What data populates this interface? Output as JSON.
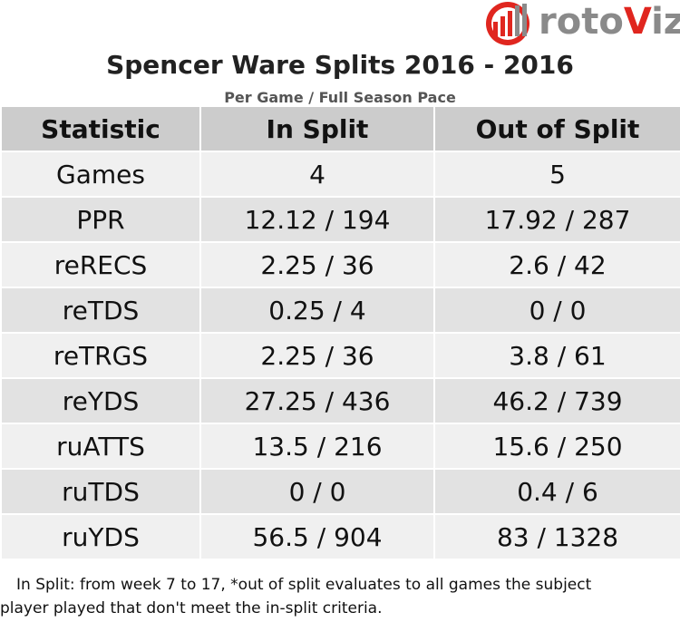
{
  "logo": {
    "text_part1": "roto",
    "text_part2": "V",
    "text_part3": "iz"
  },
  "title": "Spencer Ware Splits 2016 - 2016",
  "subtitle": "Per Game / Full Season Pace",
  "table": {
    "headers": [
      "Statistic",
      "In Split",
      "Out of Split"
    ],
    "rows": [
      [
        "Games",
        "4",
        "5"
      ],
      [
        "PPR",
        "12.12 / 194",
        "17.92 / 287"
      ],
      [
        "reRECS",
        "2.25 / 36",
        "2.6 / 42"
      ],
      [
        "reTDS",
        "0.25 / 4",
        "0 / 0"
      ],
      [
        "reTRGS",
        "2.25 / 36",
        "3.8 / 61"
      ],
      [
        "reYDS",
        "27.25 / 436",
        "46.2 / 739"
      ],
      [
        "ruATTS",
        "13.5 / 216",
        "15.6 / 250"
      ],
      [
        "ruTDS",
        "0 / 0",
        "0.4 / 6"
      ],
      [
        "ruYDS",
        "56.5 / 904",
        "83 / 1328"
      ]
    ]
  },
  "footnote": {
    "line1": "In Split: from week 7 to 17,  *out of split evaluates to all games the subject",
    "line2": "player played that don't meet the in-split criteria."
  }
}
